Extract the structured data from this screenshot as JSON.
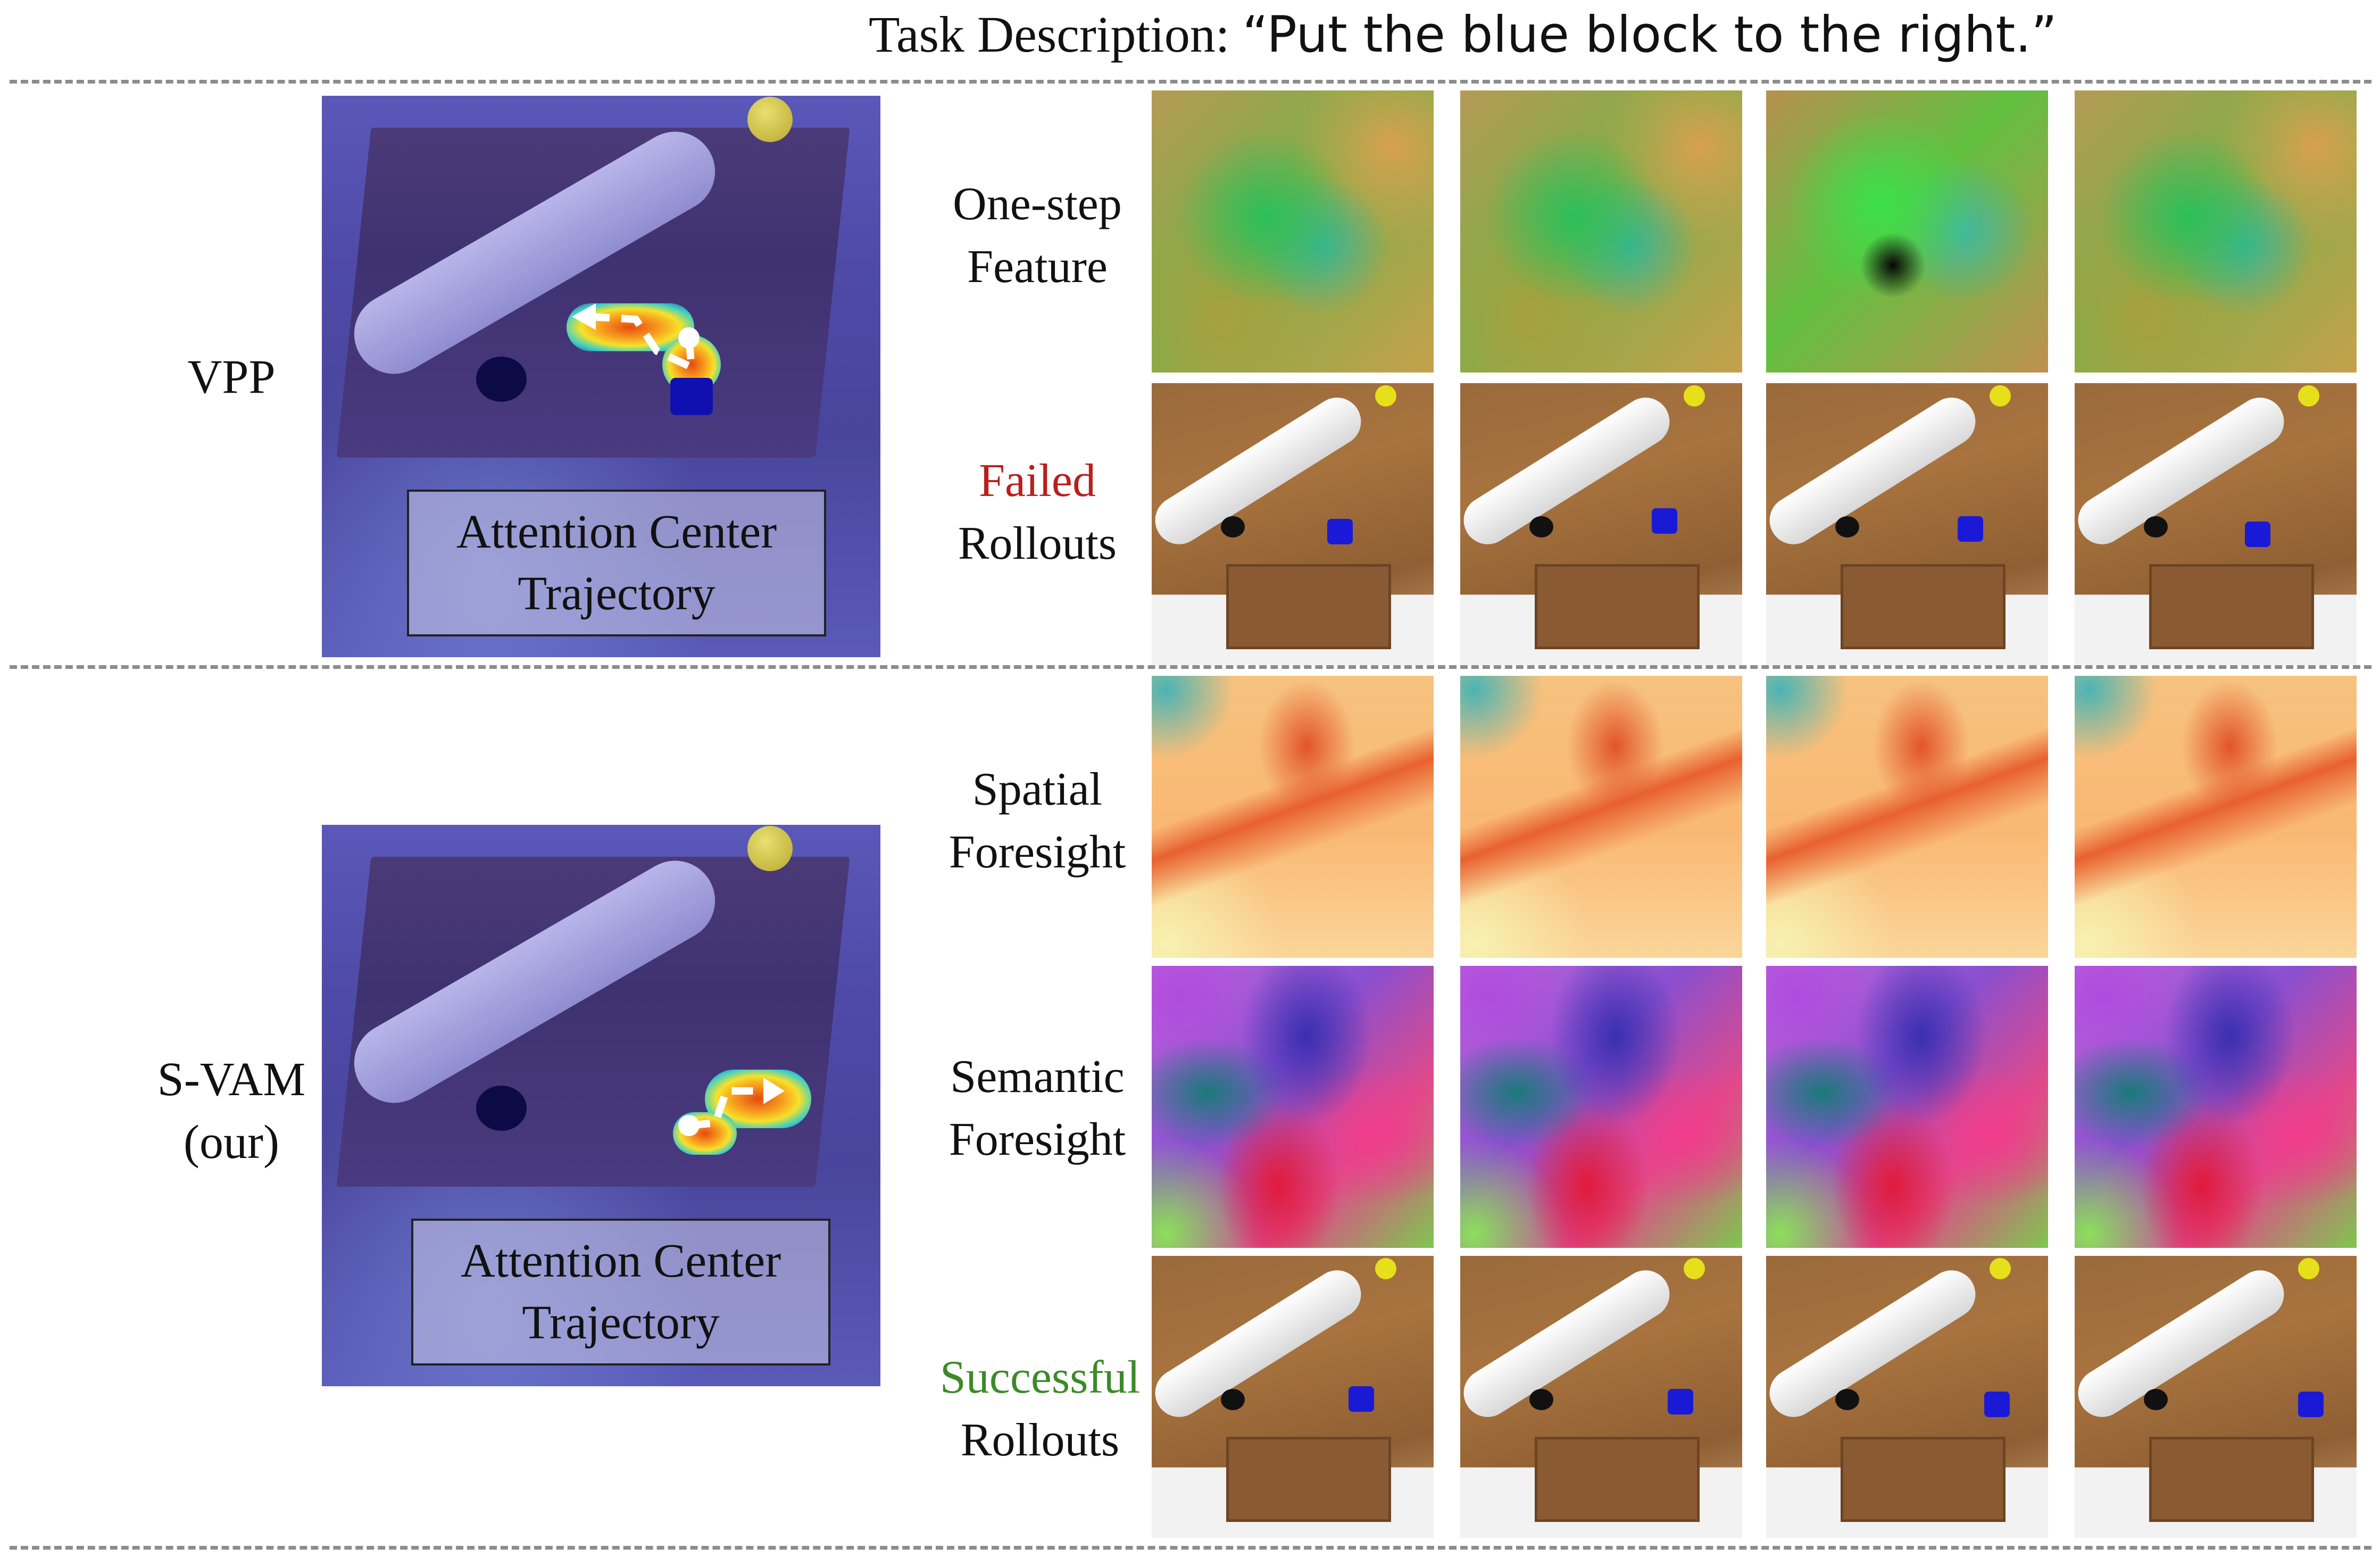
{
  "task": {
    "prefix": "Task Description: ",
    "quote": "“Put the blue block to the right.”"
  },
  "vpp": {
    "method_label": "VPP",
    "caption_line1": "Attention Center",
    "caption_line2": "Trajectory",
    "row1_label_line1": "One-step",
    "row1_label_line2": "Feature",
    "row2_label_line1": "Failed",
    "row2_label_line2": "Rollouts",
    "failed_color": "#b8201e"
  },
  "svam": {
    "method_label_line1": "S-VAM",
    "method_label_line2": "(our)",
    "caption_line1": "Attention Center",
    "caption_line2": "Trajectory",
    "row1_label_line1": "Spatial",
    "row1_label_line2": "Foresight",
    "row2_label_line1": "Semantic",
    "row2_label_line2": "Foresight",
    "row3_label_line1": "Successful",
    "row3_label_line2": "Rollouts",
    "success_color": "#3c8a2a"
  }
}
